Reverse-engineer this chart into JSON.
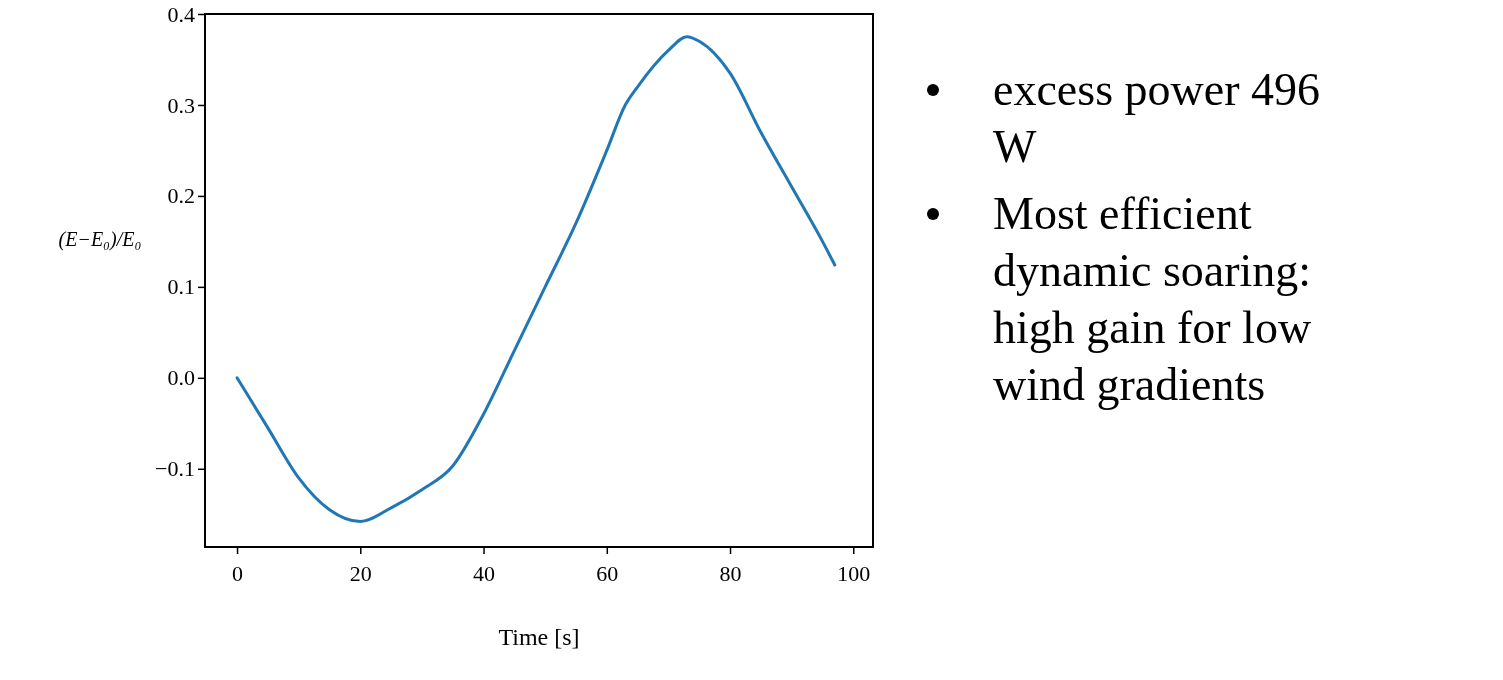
{
  "chart_data": {
    "type": "line",
    "xlabel": "Time [s]",
    "ylabel": "(E−E₀)/E₀",
    "x": [
      0,
      5,
      10,
      15,
      20,
      25,
      30,
      35,
      40,
      45,
      50,
      55,
      60,
      63,
      65,
      70,
      73,
      75,
      80,
      85,
      90,
      95,
      97
    ],
    "series": [
      {
        "color": "#1f77b4",
        "values": [
          0,
          -0.055,
          -0.11,
          -0.145,
          -0.158,
          -0.143,
          -0.123,
          -0.097,
          -0.04,
          0.03,
          0.1,
          0.17,
          0.25,
          0.3,
          0.32,
          0.36,
          0.375,
          0.37,
          0.335,
          0.27,
          0.21,
          0.15,
          0.124
        ]
      }
    ],
    "xlim": [
      -5.2,
      103.2
    ],
    "ylim": [
      -0.186,
      0.4
    ],
    "xticks": [
      0,
      20,
      40,
      60,
      80,
      100
    ],
    "yticks": [
      {
        "value": -0.1,
        "label": "−0.1"
      },
      {
        "value": 0,
        "label": "0.0"
      },
      0.1,
      0.2,
      0.3,
      0.4
    ],
    "marker": "none",
    "line_style": "solid",
    "annotations": [
      "excess power 496 W",
      "Most efficient dynamic soaring: high gain for low wind gradients"
    ]
  }
}
